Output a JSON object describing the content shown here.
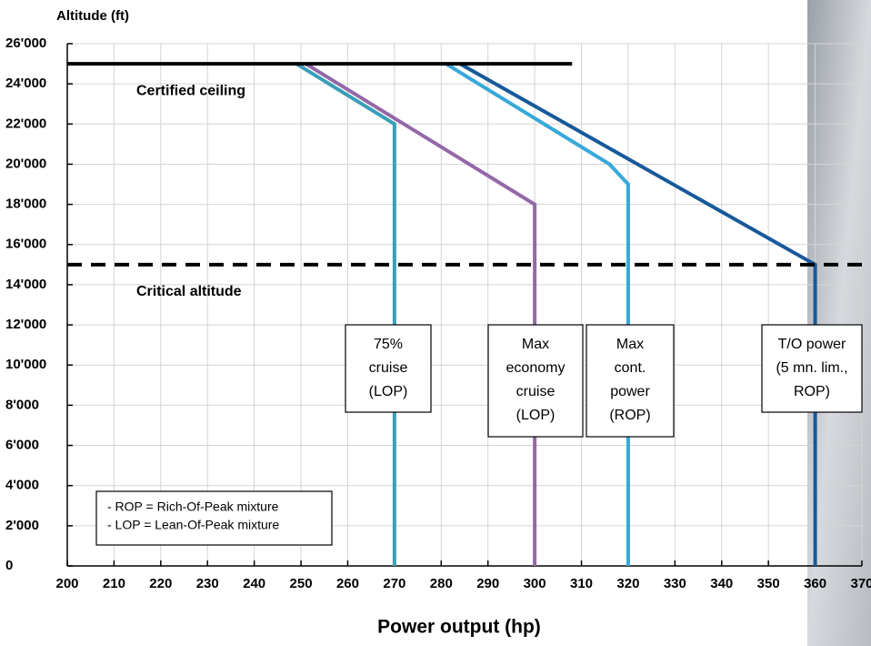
{
  "chart_data": {
    "type": "line",
    "y_label": "Altitude (ft)",
    "x_label": "Power output (hp)",
    "xlim": [
      200,
      370
    ],
    "ylim": [
      0,
      26000
    ],
    "xticks": [
      200,
      210,
      220,
      230,
      240,
      250,
      260,
      270,
      280,
      290,
      300,
      310,
      320,
      330,
      340,
      350,
      360,
      370
    ],
    "yticks": [
      0,
      {
        "value": 2000,
        "label": "2'000"
      },
      {
        "value": 4000,
        "label": "4'000"
      },
      {
        "value": 6000,
        "label": "6'000"
      },
      {
        "value": 8000,
        "label": "8'000"
      },
      {
        "value": 10000,
        "label": "10'000"
      },
      {
        "value": 12000,
        "label": "12'000"
      },
      {
        "value": 14000,
        "label": "14'000"
      },
      {
        "value": 16000,
        "label": "16'000"
      },
      {
        "value": 18000,
        "label": "18'000"
      },
      {
        "value": 20000,
        "label": "20'000"
      },
      {
        "value": 22000,
        "label": "22'000"
      },
      {
        "value": 24000,
        "label": "24'000"
      },
      {
        "value": 26000,
        "label": "26'000"
      }
    ],
    "grid": true,
    "series": [
      {
        "label": [
          "75%",
          "cruise",
          "(LOP)"
        ],
        "color": "#3a9fb8",
        "x": [
          249,
          270,
          270
        ],
        "values": [
          25000,
          22000,
          0
        ]
      },
      {
        "label": [
          "Max",
          "economy",
          "cruise",
          "(LOP)"
        ],
        "color": "#9468a8",
        "x": [
          251,
          300,
          300
        ],
        "values": [
          25000,
          18000,
          0
        ]
      },
      {
        "label": [
          "Max",
          "cont.",
          "power",
          "(ROP)"
        ],
        "color": "#38a8d8",
        "x": [
          281,
          316,
          320,
          320
        ],
        "values": [
          25000,
          20000,
          19000,
          0
        ]
      },
      {
        "label": [
          "T/O power",
          "(5 mn. lim.,",
          "ROP)"
        ],
        "color": "#17599a",
        "x": [
          284,
          360,
          360
        ],
        "values": [
          25000,
          15000,
          0
        ]
      }
    ],
    "reference_lines": [
      {
        "label": "Certified ceiling",
        "y": 25000,
        "x": [
          200,
          308
        ],
        "style": "solid"
      },
      {
        "label": "Critical altitude",
        "y": 15000,
        "x": [
          200,
          370
        ],
        "style": "dashed"
      }
    ],
    "notes": [
      "- ROP = Rich-Of-Peak mixture",
      "- LOP = Lean-Of-Peak mixture"
    ]
  }
}
